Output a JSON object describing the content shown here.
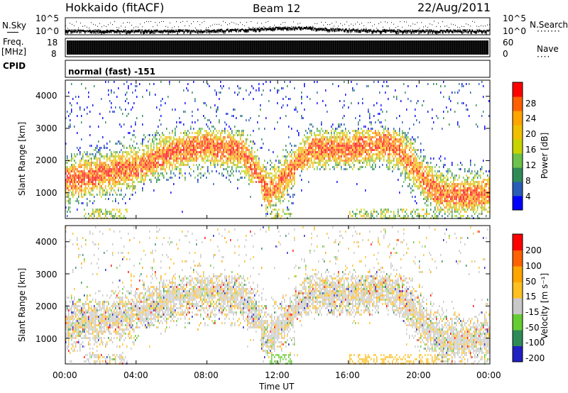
{
  "header": {
    "title": "Hokkaido (fitACF)",
    "beam": "Beam 12",
    "date": "22/Aug/2011"
  },
  "noise_panel": {
    "left_label": "N.Sky",
    "right_label": "N.Search",
    "left_ticks": [
      "10^5",
      "10^0"
    ],
    "right_ticks": [
      "10^5",
      "10^0"
    ]
  },
  "freq_panel": {
    "left_label_1": "Freq.",
    "left_label_2": "[MHz]",
    "right_label": "Nave",
    "left_ticks": [
      "18",
      "8"
    ],
    "right_ticks": [
      "60",
      "0"
    ],
    "cpid_label": "CPID",
    "cpid_text": "normal (fast) -151"
  },
  "power_panel": {
    "ylabel": "Slant Range [km]",
    "yticks": [
      "4000",
      "3000",
      "2000",
      "1000"
    ],
    "colorbar_label": "Power [dB]",
    "colorbar_ticks": [
      "28",
      "24",
      "20",
      "16",
      "12",
      "8",
      "4"
    ],
    "colors": [
      "#0000ff",
      "#2a5cb8",
      "#2e8b57",
      "#6cc24a",
      "#c8d400",
      "#f0c000",
      "#ffa500",
      "#ff6000",
      "#ff0000"
    ]
  },
  "velocity_panel": {
    "ylabel": "Slant Range [km]",
    "yticks": [
      "4000",
      "3000",
      "2000",
      "1000"
    ],
    "colorbar_label": "Velocity [m s⁻¹]",
    "colorbar_ticks": [
      "200",
      "100",
      "50",
      "15",
      "-15",
      "-50",
      "-100",
      "-200"
    ],
    "colors": [
      "#2020c0",
      "#2e8b57",
      "#66cc33",
      "#c8c8c8",
      "#ffc020",
      "#ffa500",
      "#ff6000",
      "#ff0000"
    ]
  },
  "xaxis": {
    "label": "Time UT",
    "ticks": [
      "00:00",
      "04:00",
      "08:00",
      "12:00",
      "16:00",
      "20:00",
      "00:00"
    ]
  },
  "chart_data": [
    {
      "type": "heatmap",
      "title": "Power [dB]",
      "xlabel": "Time UT",
      "ylabel": "Slant Range [km]",
      "xlim": [
        0,
        24
      ],
      "ylim": [
        200,
        4500
      ],
      "clim": [
        0,
        32
      ],
      "colorbar_ticks": [
        4,
        8,
        12,
        16,
        20,
        24,
        28
      ],
      "ridge_km": [
        [
          0,
          1400
        ],
        [
          2,
          1600
        ],
        [
          4,
          1800
        ],
        [
          6,
          2300
        ],
        [
          8,
          2500
        ],
        [
          10,
          2300
        ],
        [
          11.5,
          1000
        ],
        [
          12.5,
          1600
        ],
        [
          14,
          2400
        ],
        [
          16,
          2400
        ],
        [
          18,
          2600
        ],
        [
          19,
          2300
        ],
        [
          20,
          1600
        ],
        [
          21,
          1000
        ],
        [
          22,
          900
        ],
        [
          24,
          1000
        ]
      ]
    },
    {
      "type": "heatmap",
      "title": "Velocity [m s^-1]",
      "xlabel": "Time UT",
      "ylabel": "Slant Range [km]",
      "xlim": [
        0,
        24
      ],
      "ylim": [
        200,
        4500
      ],
      "clim": [
        -250,
        250
      ],
      "colorbar_ticks": [
        -200,
        -100,
        -50,
        -15,
        15,
        50,
        100,
        200
      ]
    }
  ]
}
